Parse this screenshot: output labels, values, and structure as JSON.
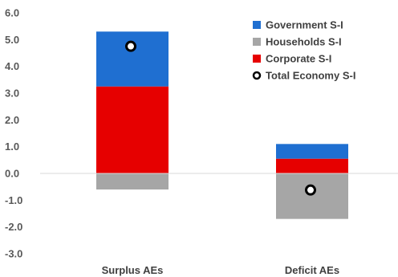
{
  "chart_data": {
    "type": "bar",
    "stacked": true,
    "categories": [
      "Surplus AEs",
      "Deficit AEs"
    ],
    "series": [
      {
        "name": "Corporate S-I",
        "color": "#e60000",
        "values": [
          3.25,
          0.55
        ]
      },
      {
        "name": "Households S-I",
        "color": "#a6a6a6",
        "values": [
          -0.6,
          -1.7
        ]
      },
      {
        "name": "Government S-I",
        "color": "#1f6fd1",
        "values": [
          2.05,
          0.55
        ]
      }
    ],
    "markers": {
      "name": "Total Economy S-I",
      "values": [
        4.75,
        -0.62
      ],
      "fill": "#ffffff",
      "stroke": "#000000"
    },
    "ylim": [
      -3.0,
      6.0
    ],
    "yticks": [
      "6.0",
      "5.0",
      "4.0",
      "3.0",
      "2.0",
      "1.0",
      "0.0",
      "-1.0",
      "-2.0",
      "-3.0"
    ],
    "title": "",
    "xlabel": "",
    "ylabel": "",
    "grid": false,
    "legend": {
      "placement": "top-right",
      "entries": [
        "Government S-I",
        "Households S-I",
        "Corporate S-I",
        "Total Economy S-I"
      ]
    }
  }
}
